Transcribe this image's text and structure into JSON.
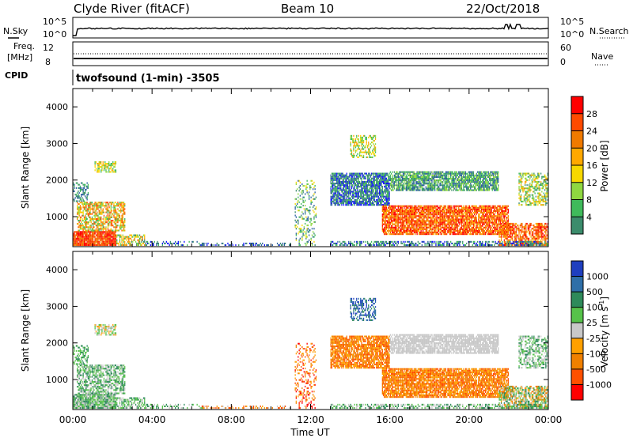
{
  "header": {
    "station": "Clyde River (fitACF)",
    "beam": "Beam 10",
    "date": "22/Oct/2018"
  },
  "top_panel": {
    "nsky_label": "N.Sky",
    "nsky_ticks": [
      "10^5",
      "10^0"
    ],
    "nsearch_label": "N.Search",
    "freq_label_1": "Freq.",
    "freq_label_2": "[MHz]",
    "freq_ticks": [
      "12",
      "8"
    ],
    "nave_ticks": [
      "60",
      "0"
    ],
    "nave_label": "Nave",
    "cpid_label": "CPID",
    "cpid_value": "twofsound (1-min) -3505"
  },
  "chart_data": [
    {
      "type": "heatmap",
      "name": "power",
      "ylabel": "Slant Range [km]",
      "xlabel": "",
      "y_ticks": [
        "4000",
        "3000",
        "2000",
        "1000"
      ],
      "ylim": [
        180,
        4500
      ],
      "xlim": [
        "00:00",
        "24:00"
      ],
      "colorbar": {
        "label": "Power [dB]",
        "ticks": [
          "28",
          "24",
          "20",
          "16",
          "12",
          "8",
          "4"
        ],
        "colors": [
          "#ff0000",
          "#ff4a00",
          "#f07a00",
          "#ffa800",
          "#f7d800",
          "#8fd840",
          "#3fba5b",
          "#3b8c6c",
          "#2a5fa0",
          "#1010ff"
        ]
      }
    },
    {
      "type": "heatmap",
      "name": "velocity",
      "ylabel": "Slant Range [km]",
      "xlabel": "Time UT",
      "x_ticks": [
        "00:00",
        "04:00",
        "08:00",
        "12:00",
        "16:00",
        "20:00",
        "00:00"
      ],
      "y_ticks": [
        "4000",
        "3000",
        "2000",
        "1000"
      ],
      "ylim": [
        180,
        4500
      ],
      "xlim": [
        "00:00",
        "24:00"
      ],
      "colorbar": {
        "label_main": "Velocity",
        "label_unit": "[m s",
        "label_exp": "-1",
        "label_close": "]",
        "ticks": [
          "1000",
          "500",
          "100",
          "25",
          "-25",
          "-100",
          "-500",
          "-1000"
        ],
        "colors": [
          "#1f3fbf",
          "#2f6fa8",
          "#2e8a5a",
          "#56c24a",
          "#c8c8c8",
          "#ffa000",
          "#f08000",
          "#ff5000",
          "#ff0000"
        ]
      }
    }
  ]
}
